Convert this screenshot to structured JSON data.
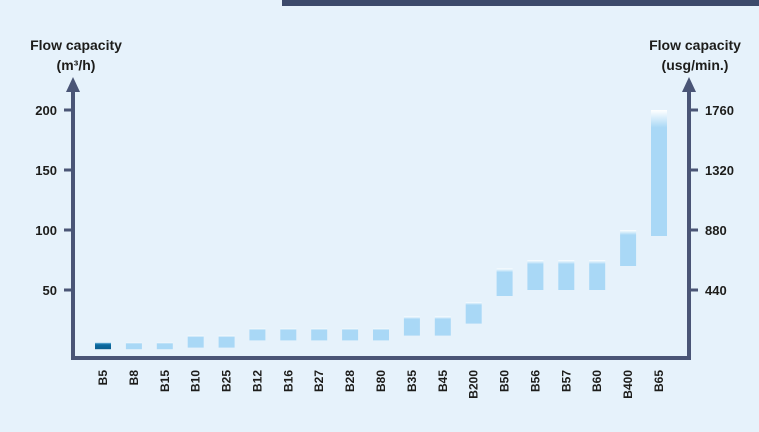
{
  "chart_data": {
    "type": "bar",
    "subtype": "floating-range",
    "left_axis": {
      "title_line1": "Flow capacity",
      "title_line2": "(m³/h)",
      "ticks": [
        50,
        100,
        150,
        200
      ],
      "tick_labels": [
        "50",
        "100",
        "150",
        "200"
      ],
      "ylim": [
        0,
        230
      ]
    },
    "right_axis": {
      "title_line1": "Flow capacity",
      "title_line2": "(usg/min.)",
      "tick_labels": [
        "440",
        "880",
        "1320",
        "1760"
      ]
    },
    "categories": [
      "B5",
      "B8",
      "B15",
      "B10",
      "B25",
      "B12",
      "B16",
      "B27",
      "B28",
      "B80",
      "B35",
      "B45",
      "B200",
      "B50",
      "B56",
      "B57",
      "B60",
      "B400",
      "B65"
    ],
    "ranges": [
      [
        0.7,
        6
      ],
      [
        0.7,
        6
      ],
      [
        0.7,
        6
      ],
      [
        2,
        12
      ],
      [
        2,
        12
      ],
      [
        8,
        18
      ],
      [
        8,
        18
      ],
      [
        8,
        18
      ],
      [
        8,
        18
      ],
      [
        8,
        18
      ],
      [
        12,
        28
      ],
      [
        12,
        28
      ],
      [
        22,
        40
      ],
      [
        45,
        68
      ],
      [
        50,
        75
      ],
      [
        50,
        75
      ],
      [
        50,
        75
      ],
      [
        70,
        100
      ],
      [
        95,
        200
      ]
    ],
    "highlighted": [
      "B5"
    ],
    "colors": {
      "bar": "#a9d8f6",
      "bar_highlight": "#0b6aa0",
      "axis": "#4a5576",
      "background": "#e6f2fb",
      "top_bar": "#3c4a6b"
    }
  }
}
